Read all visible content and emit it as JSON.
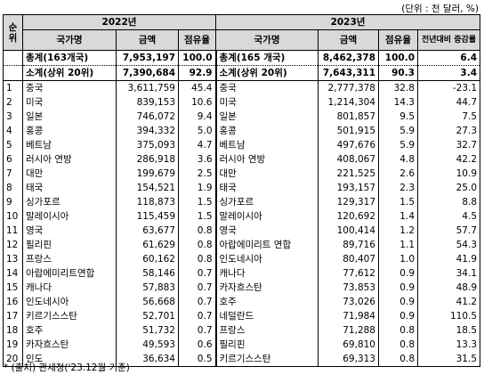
{
  "unit": "(단위 : 천 달러, %)",
  "header": {
    "rank": "순위",
    "year_2022": "2022년",
    "year_2023": "2023년",
    "country": "국가명",
    "amount": "금액",
    "share": "점유율",
    "growth": "전년대비 증감률"
  },
  "total": {
    "name_2022": "총계(163개국)",
    "amount_2022": "7,953,197",
    "share_2022": "100.0",
    "name_2023": "총계(165 개국)",
    "amount_2023": "8,462,378",
    "share_2023": "100.0",
    "growth": "6.4"
  },
  "subtotal": {
    "name_2022": "소계(상위 20위)",
    "amount_2022": "7,390,684",
    "share_2022": "92.9",
    "name_2023": "소계(상위 20위)",
    "amount_2023": "7,643,311",
    "share_2023": "90.3",
    "growth": "3.4"
  },
  "rows": [
    {
      "rank": "1",
      "n22": "중국",
      "a22": "3,611,759",
      "s22": "45.4",
      "n23": "중국",
      "a23": "2,777,378",
      "s23": "32.8",
      "g": "-23.1"
    },
    {
      "rank": "2",
      "n22": "미국",
      "a22": "839,153",
      "s22": "10.6",
      "n23": "미국",
      "a23": "1,214,304",
      "s23": "14.3",
      "g": "44.7"
    },
    {
      "rank": "3",
      "n22": "일본",
      "a22": "746,072",
      "s22": "9.4",
      "n23": "일본",
      "a23": "801,857",
      "s23": "9.5",
      "g": "7.5"
    },
    {
      "rank": "4",
      "n22": "홍콩",
      "a22": "394,332",
      "s22": "5.0",
      "n23": "홍콩",
      "a23": "501,915",
      "s23": "5.9",
      "g": "27.3"
    },
    {
      "rank": "5",
      "n22": "베트남",
      "a22": "375,093",
      "s22": "4.7",
      "n23": "베트남",
      "a23": "497,676",
      "s23": "5.9",
      "g": "32.7"
    },
    {
      "rank": "6",
      "n22": "러시아 연방",
      "a22": "286,918",
      "s22": "3.6",
      "n23": "러시아 연방",
      "a23": "408,067",
      "s23": "4.8",
      "g": "42.2"
    },
    {
      "rank": "7",
      "n22": "대만",
      "a22": "199,679",
      "s22": "2.5",
      "n23": "대만",
      "a23": "221,525",
      "s23": "2.6",
      "g": "10.9"
    },
    {
      "rank": "8",
      "n22": "태국",
      "a22": "154,521",
      "s22": "1.9",
      "n23": "태국",
      "a23": "193,157",
      "s23": "2.3",
      "g": "25.0"
    },
    {
      "rank": "9",
      "n22": "싱가포르",
      "a22": "118,873",
      "s22": "1.5",
      "n23": "싱가포르",
      "a23": "129,317",
      "s23": "1.5",
      "g": "8.8"
    },
    {
      "rank": "10",
      "n22": "말레이시아",
      "a22": "115,459",
      "s22": "1.5",
      "n23": "말레이시아",
      "a23": "120,692",
      "s23": "1.4",
      "g": "4.5"
    },
    {
      "rank": "11",
      "n22": "영국",
      "a22": "63,677",
      "s22": "0.8",
      "n23": "영국",
      "a23": "100,414",
      "s23": "1.2",
      "g": "57.7"
    },
    {
      "rank": "12",
      "n22": "필리핀",
      "a22": "61,629",
      "s22": "0.8",
      "n23": "아랍에미리트 연합",
      "a23": "89,716",
      "s23": "1.1",
      "g": "54.3"
    },
    {
      "rank": "13",
      "n22": "프랑스",
      "a22": "60,162",
      "s22": "0.8",
      "n23": "인도네시아",
      "a23": "80,407",
      "s23": "1.0",
      "g": "41.9"
    },
    {
      "rank": "14",
      "n22": "아랍에미리트연합",
      "a22": "58,146",
      "s22": "0.7",
      "n23": "캐나다",
      "a23": "77,612",
      "s23": "0.9",
      "g": "34.1"
    },
    {
      "rank": "15",
      "n22": "캐나다",
      "a22": "57,883",
      "s22": "0.7",
      "n23": "카자흐스탄",
      "a23": "73,853",
      "s23": "0.9",
      "g": "48.9"
    },
    {
      "rank": "16",
      "n22": "인도네시아",
      "a22": "56,668",
      "s22": "0.7",
      "n23": "호주",
      "a23": "73,026",
      "s23": "0.9",
      "g": "41.2"
    },
    {
      "rank": "17",
      "n22": "키르기스스탄",
      "a22": "52,701",
      "s22": "0.7",
      "n23": "네덜란드",
      "a23": "71,984",
      "s23": "0.9",
      "g": "110.5"
    },
    {
      "rank": "18",
      "n22": "호주",
      "a22": "51,732",
      "s22": "0.7",
      "n23": "프랑스",
      "a23": "71,288",
      "s23": "0.8",
      "g": "18.5"
    },
    {
      "rank": "19",
      "n22": "카자흐스탄",
      "a22": "49,593",
      "s22": "0.6",
      "n23": "필리핀",
      "a23": "69,810",
      "s23": "0.8",
      "g": "13.3"
    },
    {
      "rank": "20",
      "n22": "인도",
      "a22": "36,634",
      "s22": "0.5",
      "n23": "키르기스스탄",
      "a23": "69,313",
      "s23": "0.8",
      "g": "31.5"
    }
  ],
  "source": "* (출처) 관세청('23.12월 기준)"
}
